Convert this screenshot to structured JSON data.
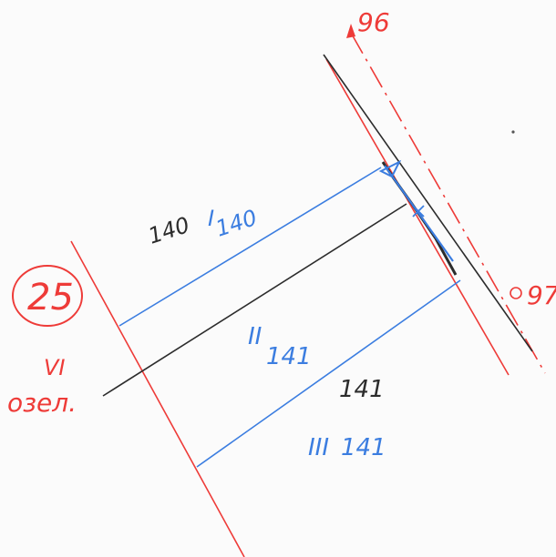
{
  "labels": {
    "parcel_number": "25",
    "parcel_roman": "VI",
    "parcel_note": "озел.",
    "point_top": "96",
    "point_bottom": "97",
    "black_upper": "140",
    "blue_upper_roman": "I",
    "blue_upper": "140",
    "blue_middle_roman": "II",
    "blue_middle": "141",
    "black_lower": "141",
    "blue_lower_roman": "III",
    "blue_lower": "141"
  },
  "colors": {
    "paper": "#fbfbfb",
    "red_ink": "#ee3b38",
    "blue_ink": "#3b7de0",
    "black_ink": "#2c2c2c"
  }
}
